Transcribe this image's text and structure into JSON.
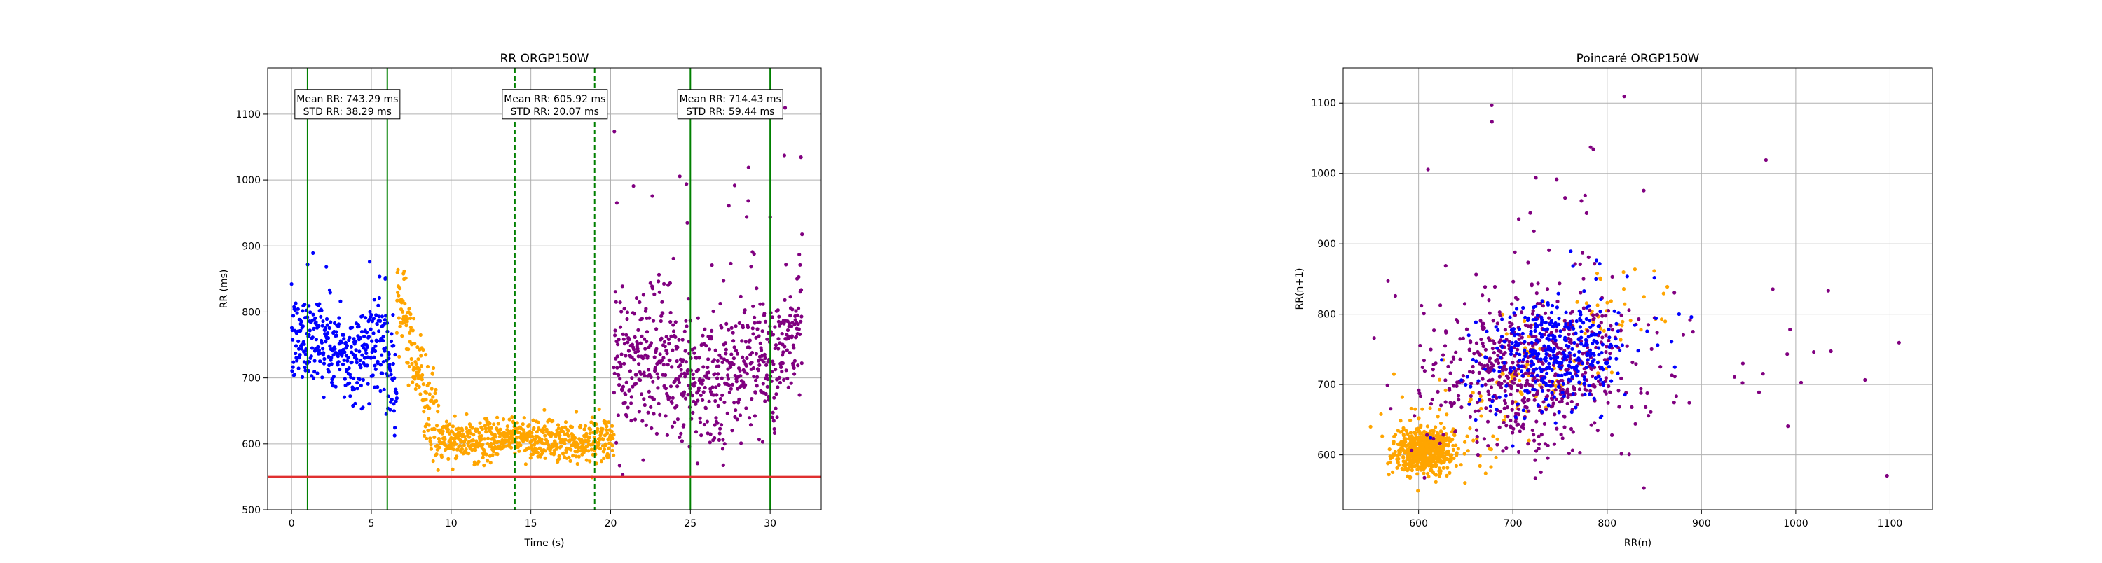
{
  "colors": {
    "segment1": "#0000ff",
    "segment2": "#ffa500",
    "segment3": "#800080",
    "solid_marker": "#008000",
    "dashed_marker": "#008000",
    "threshold": "#e03030",
    "grid": "#b0b0b0"
  },
  "chart_data": [
    {
      "type": "scatter",
      "title": "RR ORGP150W",
      "xlabel": "Time (s)",
      "ylabel": "RR (ms)",
      "xlim": [
        -1.5,
        33.2
      ],
      "ylim": [
        500,
        1170
      ],
      "xticks": [
        0,
        5,
        10,
        15,
        20,
        25,
        30
      ],
      "yticks": [
        500,
        600,
        700,
        800,
        900,
        1000,
        1100
      ],
      "grid": true,
      "series": [
        {
          "color_key": "segment1",
          "t_range": [
            0,
            6.6
          ],
          "mean": 743.29,
          "std": 38.29,
          "n": 380
        },
        {
          "color_key": "segment2",
          "t_range": [
            6.6,
            20.2
          ],
          "mean": 605.92,
          "std": 20.07,
          "n": 760
        },
        {
          "color_key": "segment3",
          "t_range": [
            20.2,
            32.0
          ],
          "mean": 714.43,
          "std": 59.44,
          "n": 680
        }
      ],
      "vertical_lines": [
        {
          "x": 1,
          "style": "solid"
        },
        {
          "x": 6,
          "style": "solid"
        },
        {
          "x": 14,
          "style": "dashed"
        },
        {
          "x": 19,
          "style": "dashed"
        },
        {
          "x": 25,
          "style": "solid"
        },
        {
          "x": 30,
          "style": "solid"
        }
      ],
      "threshold_line": {
        "y": 550
      },
      "annotations": [
        {
          "line1": "Mean RR: 743.29 ms",
          "line2": "STD RR: 38.29 ms",
          "x": 3.5,
          "y": 1115
        },
        {
          "line1": "Mean RR: 605.92 ms",
          "line2": "STD RR: 20.07 ms",
          "x": 16.5,
          "y": 1115
        },
        {
          "line1": "Mean RR: 714.43 ms",
          "line2": "STD RR: 59.44 ms",
          "x": 27.5,
          "y": 1115
        }
      ]
    },
    {
      "type": "scatter",
      "title": "Poincaré ORGP150W",
      "xlabel": "RR(n)",
      "ylabel": "RR(n+1)",
      "xlim": [
        520,
        1145
      ],
      "ylim": [
        522,
        1150
      ],
      "xticks": [
        600,
        700,
        800,
        900,
        1000,
        1100
      ],
      "yticks": [
        600,
        700,
        800,
        900,
        1000,
        1100
      ],
      "grid": true,
      "series": [
        {
          "color_key": "segment1",
          "mean": 743.29,
          "std": 38.29,
          "n": 380
        },
        {
          "color_key": "segment2",
          "mean": 605.92,
          "std": 20.07,
          "n": 760
        },
        {
          "color_key": "segment3",
          "mean": 714.43,
          "std": 59.44,
          "n": 680
        }
      ]
    }
  ]
}
